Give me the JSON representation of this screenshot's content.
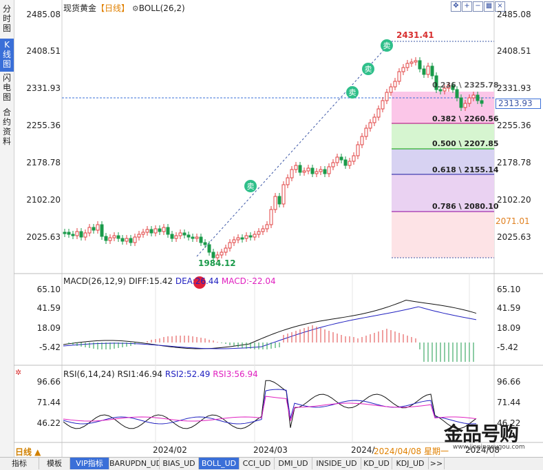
{
  "header": {
    "instrument": "现货黄金",
    "period": "【日线】",
    "indicator": "BOLL(26,2)"
  },
  "left_tabs": [
    {
      "label": "分\n时\n图"
    },
    {
      "label": "K\n线\n图"
    },
    {
      "label": "闪\n电\n图"
    },
    {
      "label": "合\n约\n资\n料"
    }
  ],
  "toolbar_icons": [
    "crosshair-icon",
    "zoom-in-icon",
    "zoom-out-icon",
    "zoom-fit-icon",
    "close-icon"
  ],
  "price_axis": {
    "left": [
      "2485.08",
      "2408.51",
      "2331.93",
      "2255.36",
      "2178.78",
      "2102.20",
      "2025.63"
    ],
    "right": [
      "2485.08",
      "2408.51",
      "2331.93",
      "2255.36",
      "2178.78",
      "2102.20",
      "2025.63"
    ],
    "current_price": "2313.93",
    "lower_mark": "2071.01"
  },
  "annotations": {
    "high": "2431.41",
    "low": "1984.12",
    "sell_label": "卖"
  },
  "fib_levels": [
    {
      "label": "0.236 \\ 2325.78",
      "color": "#d84a6a"
    },
    {
      "label": "0.382 \\ 2260.56",
      "color": "#b0007a"
    },
    {
      "label": "0.500 \\ 2207.85",
      "color": "#00a000"
    },
    {
      "label": "0.618 \\ 2155.14",
      "color": "#1a1aa0"
    },
    {
      "label": "0.786 \\ 2080.10",
      "color": "#8a00a0"
    }
  ],
  "macd": {
    "title": "MACD(26,12,9)",
    "diff": "DIFF:15.42",
    "dea": "DEA:26.44",
    "macd": "MACD:-22.04",
    "axis_left": [
      "65.10",
      "41.59",
      "18.09",
      "-5.42"
    ],
    "axis_right": [
      "65.10",
      "41.59",
      "18.09",
      "-5.42"
    ]
  },
  "rsi": {
    "title": "RSI(6,14,24)",
    "rsi1": "RSI1:46.94",
    "rsi2": "RSI2:52.49",
    "rsi3": "RSI3:56.94",
    "axis_left": [
      "96.66",
      "71.44",
      "46.22"
    ],
    "axis_right": [
      "96.66",
      "71.44",
      "46.22"
    ]
  },
  "time_axis": {
    "period_label": "日线 ▲",
    "dates": [
      "2024/02",
      "2024/03",
      "2024/",
      "2024/04/08 星期一",
      "2024/08"
    ]
  },
  "watermark": "金品号购",
  "watermark_sub": "www.jinpingougou.com",
  "bottom_tabs": [
    "指标",
    "模板",
    "VIP指标",
    "BARUPDN_UD",
    "BIAS_UD",
    "BOLL_UD",
    "CCI_UD",
    "DMI_UD",
    "INSIDE_UD",
    "KD_UD",
    "KDJ_UD",
    ">>"
  ],
  "colors": {
    "up": "#e04040",
    "down": "#1a9a4a",
    "accent": "#3a6fd8",
    "macd_pink": "#e020c0",
    "rsi_blue": "#2020c0"
  }
}
